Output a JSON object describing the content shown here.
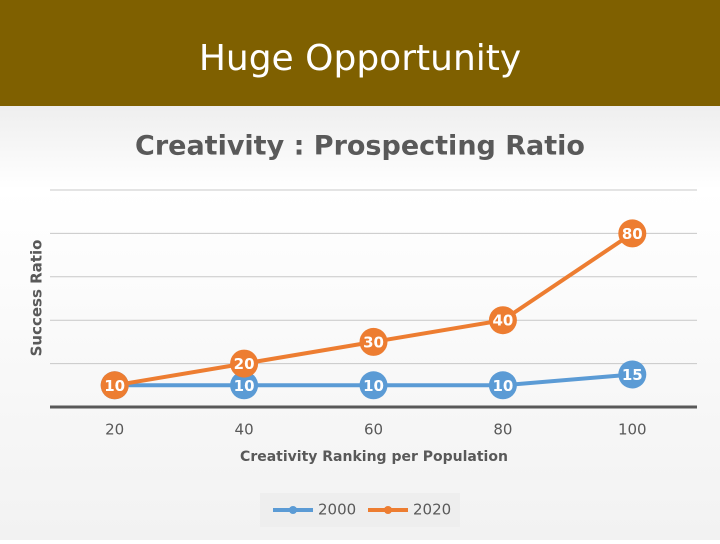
{
  "header": {
    "title": "Huge Opportunity"
  },
  "chart_data": {
    "type": "line",
    "title": "Creativity : Prospecting Ratio",
    "x_label": "Creativity Ranking per Population",
    "y_label": "Success Ratio",
    "x": [
      20,
      40,
      60,
      80,
      100
    ],
    "series": [
      {
        "name": "2000",
        "color": "#5b9bd5",
        "values": [
          10,
          10,
          10,
          10,
          15
        ]
      },
      {
        "name": "2020",
        "color": "#ed7d31",
        "values": [
          10,
          20,
          30,
          40,
          80
        ]
      }
    ],
    "xlim": [
      10,
      110
    ],
    "xticks": [
      20,
      40,
      60,
      80,
      100
    ],
    "ylim": [
      0,
      100
    ],
    "yticks": [
      0,
      20,
      40,
      60,
      80,
      100
    ],
    "grid": true,
    "legend": "bottom"
  }
}
